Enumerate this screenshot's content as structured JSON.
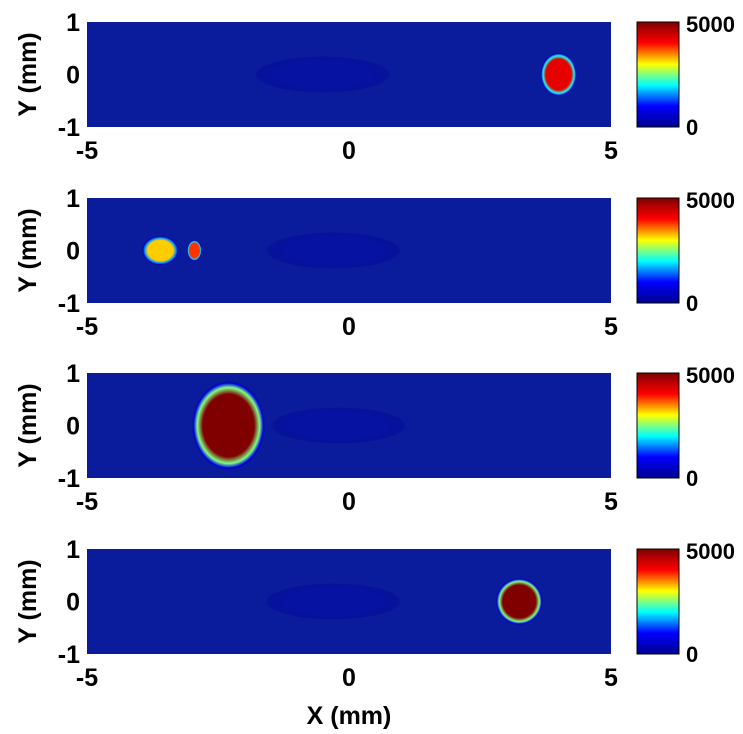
{
  "figure": {
    "xlabel": "X (mm)"
  },
  "colors": {
    "background": "#0a1c9c",
    "colormap": [
      "#00008f",
      "#0000ff",
      "#00ffff",
      "#ffff00",
      "#ff0000",
      "#800000"
    ]
  },
  "chart_data": [
    {
      "type": "heatmap",
      "panel": 1,
      "xlim": [
        -5,
        5
      ],
      "ylim": [
        -1,
        1
      ],
      "ylabel": "Y (mm)",
      "x_ticks": [
        "-5",
        "0",
        "5"
      ],
      "y_ticks": [
        "1",
        "0",
        "-1"
      ],
      "colorbar": {
        "min": 0,
        "max": 5000,
        "ticks": [
          "5000",
          "0"
        ]
      },
      "blobs": [
        {
          "x": 4.0,
          "y": 0.0,
          "rx": 0.35,
          "ry": 0.42,
          "peak": 4200
        },
        {
          "x": -0.5,
          "y": 0.0,
          "rx": 1.3,
          "ry": 0.35,
          "peak": 250
        }
      ]
    },
    {
      "type": "heatmap",
      "panel": 2,
      "xlim": [
        -5,
        5
      ],
      "ylim": [
        -1,
        1
      ],
      "ylabel": "Y (mm)",
      "x_ticks": [
        "-5",
        "0",
        "5"
      ],
      "y_ticks": [
        "1",
        "0",
        "-1"
      ],
      "colorbar": {
        "min": 0,
        "max": 5000,
        "ticks": [
          "5000",
          "0"
        ]
      },
      "blobs": [
        {
          "x": -3.6,
          "y": 0.0,
          "rx": 0.35,
          "ry": 0.28,
          "peak": 3200
        },
        {
          "x": -2.95,
          "y": 0.0,
          "rx": 0.14,
          "ry": 0.2,
          "peak": 3800
        },
        {
          "x": -0.3,
          "y": 0.0,
          "rx": 1.3,
          "ry": 0.35,
          "peak": 250
        }
      ]
    },
    {
      "type": "heatmap",
      "panel": 3,
      "xlim": [
        -5,
        5
      ],
      "ylim": [
        -1,
        1
      ],
      "ylabel": "Y (mm)",
      "x_ticks": [
        "-5",
        "0",
        "5"
      ],
      "y_ticks": [
        "1",
        "0",
        "-1"
      ],
      "colorbar": {
        "min": 0,
        "max": 5000,
        "ticks": [
          "5000",
          "0"
        ]
      },
      "blobs": [
        {
          "x": -2.3,
          "y": 0.0,
          "rx": 0.7,
          "ry": 0.85,
          "peak": 5000
        },
        {
          "x": -0.2,
          "y": 0.0,
          "rx": 1.3,
          "ry": 0.35,
          "peak": 250
        }
      ]
    },
    {
      "type": "heatmap",
      "panel": 4,
      "xlim": [
        -5,
        5
      ],
      "ylim": [
        -1,
        1
      ],
      "ylabel": "Y (mm)",
      "x_ticks": [
        "-5",
        "0",
        "5"
      ],
      "y_ticks": [
        "1",
        "0",
        "-1"
      ],
      "colorbar": {
        "min": 0,
        "max": 5000,
        "ticks": [
          "5000",
          "0"
        ]
      },
      "blobs": [
        {
          "x": 3.25,
          "y": 0.0,
          "rx": 0.45,
          "ry": 0.45,
          "peak": 5000
        },
        {
          "x": -0.3,
          "y": 0.0,
          "rx": 1.3,
          "ry": 0.35,
          "peak": 250
        }
      ]
    }
  ]
}
